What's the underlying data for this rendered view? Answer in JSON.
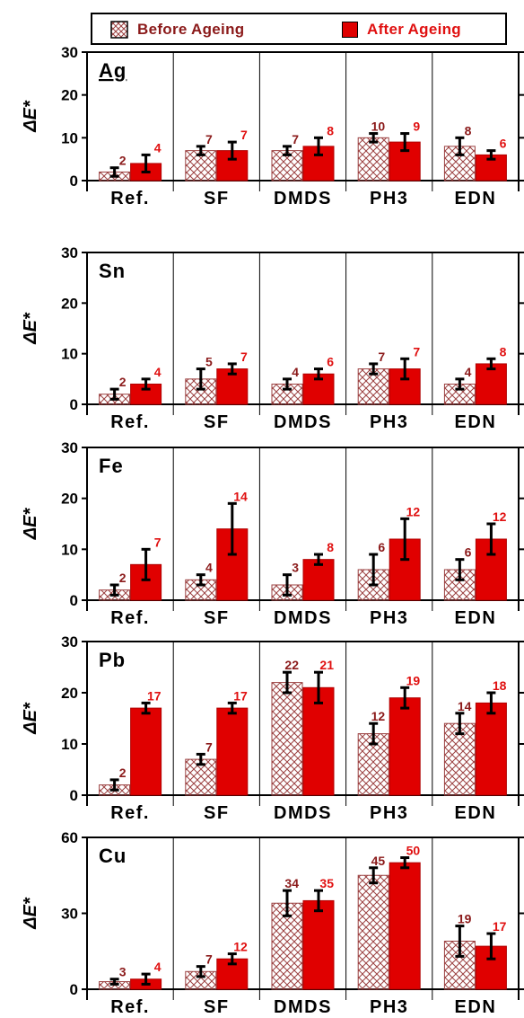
{
  "legend": {
    "before_label": "Before Ageing",
    "after_label": "After Ageing"
  },
  "colors": {
    "before_label": "#8b1a1a",
    "after_label": "#e01010",
    "after_fill": "#e00000",
    "hatch": "#9b4040",
    "axis": "#000000",
    "error_bar": "#000000"
  },
  "chart_data": [
    {
      "type": "bar",
      "title": "Ag",
      "title_underlined": true,
      "ylabel": "ΔE*",
      "ylim": [
        0,
        30
      ],
      "yticks": [
        0,
        10,
        20,
        30
      ],
      "categories": [
        "Ref.",
        "SF",
        "DMDS",
        "PH3",
        "EDN"
      ],
      "series": [
        {
          "name": "Before Ageing",
          "values": [
            2,
            7,
            7,
            10,
            8
          ],
          "errors": [
            1,
            1,
            1,
            1,
            2
          ],
          "labels": [
            "2",
            "7",
            "7",
            "10",
            "8"
          ]
        },
        {
          "name": "After Ageing",
          "values": [
            4,
            7,
            8,
            9,
            6
          ],
          "errors": [
            2,
            2,
            2,
            2,
            1
          ],
          "labels": [
            "4",
            "7",
            "8",
            "9",
            "6"
          ]
        }
      ]
    },
    {
      "type": "bar",
      "title": "Sn",
      "ylabel": "ΔE*",
      "ylim": [
        0,
        30
      ],
      "yticks": [
        0,
        10,
        20,
        30
      ],
      "categories": [
        "Ref.",
        "SF",
        "DMDS",
        "PH3",
        "EDN"
      ],
      "series": [
        {
          "name": "Before Ageing",
          "values": [
            2,
            5,
            4,
            7,
            4
          ],
          "errors": [
            1,
            2,
            1,
            1,
            1
          ],
          "labels": [
            "2",
            "5",
            "4",
            "7",
            "4"
          ]
        },
        {
          "name": "After Ageing",
          "values": [
            4,
            7,
            6,
            7,
            8
          ],
          "errors": [
            1,
            1,
            1,
            2,
            1
          ],
          "labels": [
            "4",
            "7",
            "6",
            "7",
            "8"
          ]
        }
      ]
    },
    {
      "type": "bar",
      "title": "Fe",
      "ylabel": "ΔE*",
      "ylim": [
        0,
        30
      ],
      "yticks": [
        0,
        10,
        20,
        30
      ],
      "categories": [
        "Ref.",
        "SF",
        "DMDS",
        "PH3",
        "EDN"
      ],
      "series": [
        {
          "name": "Before Ageing",
          "values": [
            2,
            4,
            3,
            6,
            6
          ],
          "errors": [
            1,
            1,
            2,
            3,
            2
          ],
          "labels": [
            "2",
            "4",
            "3",
            "6",
            "6"
          ]
        },
        {
          "name": "After Ageing",
          "values": [
            7,
            14,
            8,
            12,
            12
          ],
          "errors": [
            3,
            5,
            1,
            4,
            3
          ],
          "labels": [
            "7",
            "14",
            "8",
            "12",
            "12"
          ]
        }
      ]
    },
    {
      "type": "bar",
      "title": "Pb",
      "ylabel": "ΔE*",
      "ylim": [
        0,
        30
      ],
      "yticks": [
        0,
        10,
        20,
        30
      ],
      "categories": [
        "Ref.",
        "SF",
        "DMDS",
        "PH3",
        "EDN"
      ],
      "series": [
        {
          "name": "Before Ageing",
          "values": [
            2,
            7,
            22,
            12,
            14
          ],
          "errors": [
            1,
            1,
            2,
            2,
            2
          ],
          "labels": [
            "2",
            "7",
            "22",
            "12",
            "14"
          ]
        },
        {
          "name": "After Ageing",
          "values": [
            17,
            17,
            21,
            19,
            18
          ],
          "errors": [
            1,
            1,
            3,
            2,
            2
          ],
          "labels": [
            "17",
            "17",
            "21",
            "19",
            "18"
          ]
        }
      ]
    },
    {
      "type": "bar",
      "title": "Cu",
      "ylabel": "ΔE*",
      "ylim": [
        0,
        60
      ],
      "yticks": [
        0,
        30,
        60
      ],
      "categories": [
        "Ref.",
        "SF",
        "DMDS",
        "PH3",
        "EDN"
      ],
      "series": [
        {
          "name": "Before Ageing",
          "values": [
            3,
            7,
            34,
            45,
            19
          ],
          "errors": [
            1,
            2,
            5,
            3,
            6
          ],
          "labels": [
            "3",
            "7",
            "34",
            "45",
            "19"
          ]
        },
        {
          "name": "After Ageing",
          "values": [
            4,
            12,
            35,
            50,
            17
          ],
          "errors": [
            2,
            2,
            4,
            2,
            5
          ],
          "labels": [
            "4",
            "12",
            "35",
            "50",
            "17"
          ]
        }
      ]
    }
  ]
}
